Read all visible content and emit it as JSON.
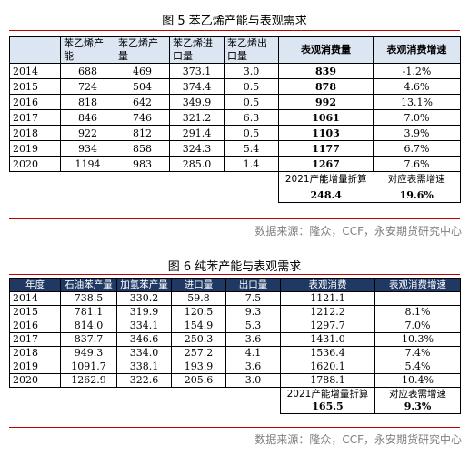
{
  "fig5": {
    "title": "图 5  苯乙烯产能与表观需求",
    "headers": [
      "",
      "苯乙烯产能",
      "苯乙烯产量",
      "苯乙烯进口量",
      "苯乙烯出口量",
      "表观消费量",
      "表观消费增速"
    ],
    "rows": [
      [
        "2014",
        "688",
        "469",
        "373.1",
        "3.0",
        "839",
        "-1.2%"
      ],
      [
        "2015",
        "724",
        "504",
        "374.4",
        "0.5",
        "878",
        "4.6%"
      ],
      [
        "2016",
        "818",
        "642",
        "349.9",
        "0.5",
        "992",
        "13.1%"
      ],
      [
        "2017",
        "846",
        "746",
        "321.2",
        "6.3",
        "1061",
        "7.0%"
      ],
      [
        "2018",
        "922",
        "812",
        "291.4",
        "0.5",
        "1103",
        "3.9%"
      ],
      [
        "2019",
        "934",
        "858",
        "324.3",
        "5.4",
        "1177",
        "6.7%"
      ],
      [
        "2020",
        "1194",
        "983",
        "285.0",
        "1.4",
        "1267",
        "7.6%"
      ]
    ],
    "summary_label_1": "2021产能增量折算",
    "summary_label_2": "对应表需增速",
    "summary_value_1": "248.4",
    "summary_value_2": "19.6%",
    "source": "数据来源：隆众，CCF，永安期货研究中心"
  },
  "fig6": {
    "title": "图 6  纯苯产能与表观需求",
    "headers": [
      "年度",
      "石油苯产量",
      "加氢苯产量",
      "进口量",
      "出口量",
      "表观消费",
      "表观消费增速"
    ],
    "rows": [
      [
        "2014",
        "738.5",
        "330.2",
        "59.8",
        "7.5",
        "1121.1",
        ""
      ],
      [
        "2015",
        "781.1",
        "319.9",
        "120.5",
        "9.3",
        "1212.2",
        "8.1%"
      ],
      [
        "2016",
        "814.0",
        "334.1",
        "154.9",
        "5.3",
        "1297.7",
        "7.0%"
      ],
      [
        "2017",
        "837.7",
        "346.6",
        "250.3",
        "3.6",
        "1431.0",
        "10.3%"
      ],
      [
        "2018",
        "949.3",
        "334.0",
        "257.2",
        "4.1",
        "1536.4",
        "7.4%"
      ],
      [
        "2019",
        "1091.7",
        "338.1",
        "193.9",
        "3.6",
        "1620.1",
        "5.4%"
      ],
      [
        "2020",
        "1262.9",
        "322.6",
        "205.6",
        "3.0",
        "1788.1",
        "10.4%"
      ]
    ],
    "summary_label_1": "2021产能增量折算",
    "summary_label_2": "对应表需增速",
    "summary_value_1": "165.5",
    "summary_value_2": "9.3%",
    "source": "数据来源：隆众，CCF，永安期货研究中心"
  }
}
